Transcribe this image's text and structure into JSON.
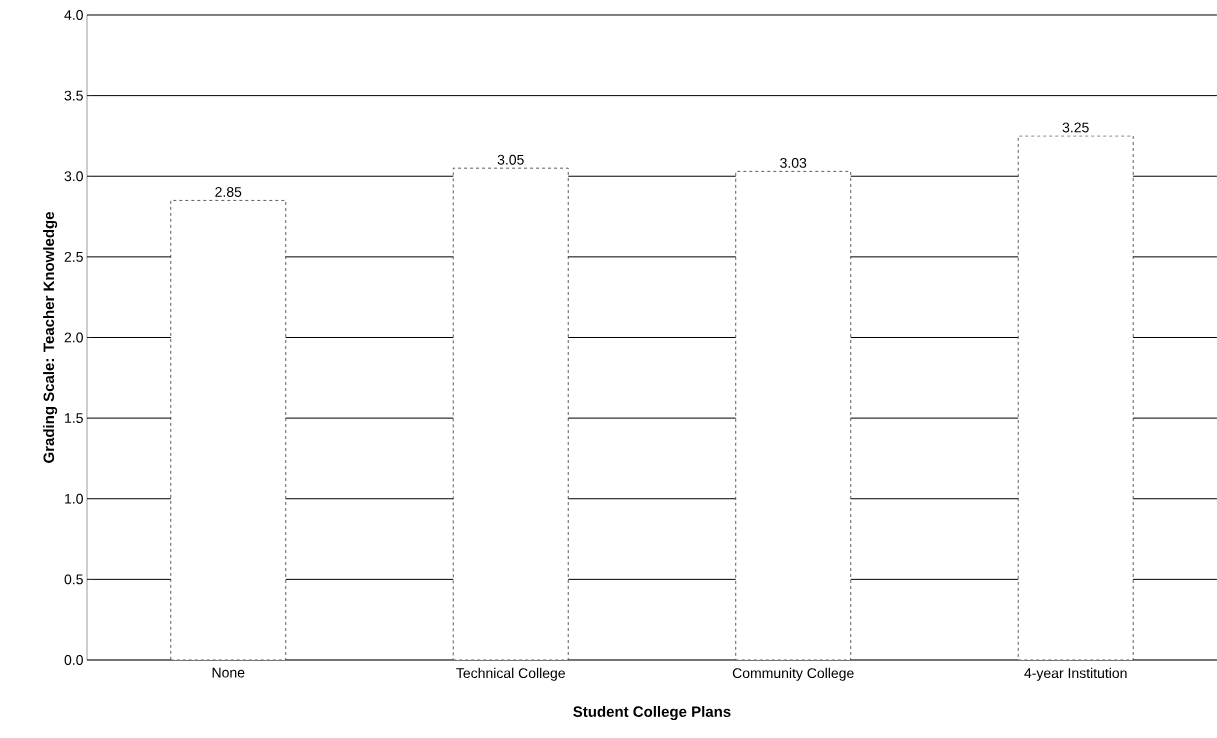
{
  "chart_data": {
    "type": "bar",
    "xlabel": "Student College Plans",
    "ylabel": "Grading Scale: Teacher Knowledge",
    "categories": [
      "None",
      "Technical College",
      "Community College",
      "4-year Institution"
    ],
    "values": [
      2.85,
      3.05,
      3.03,
      3.25
    ],
    "color": "#ffffff",
    "ylim": [
      0,
      4
    ],
    "yticks": [
      {
        "value": 0,
        "label": "0.0"
      },
      {
        "value": 0.5,
        "label": "0.5"
      },
      {
        "value": 1,
        "label": "1.0"
      },
      {
        "value": 1.5,
        "label": "1.5"
      },
      {
        "value": 2,
        "label": "2.0"
      },
      {
        "value": 2.5,
        "label": "2.5"
      },
      {
        "value": 3,
        "label": "3.0"
      },
      {
        "value": 3.5,
        "label": "3.5"
      },
      {
        "value": 4,
        "label": "4.0"
      }
    ],
    "grid": "y",
    "data_labels": true
  }
}
